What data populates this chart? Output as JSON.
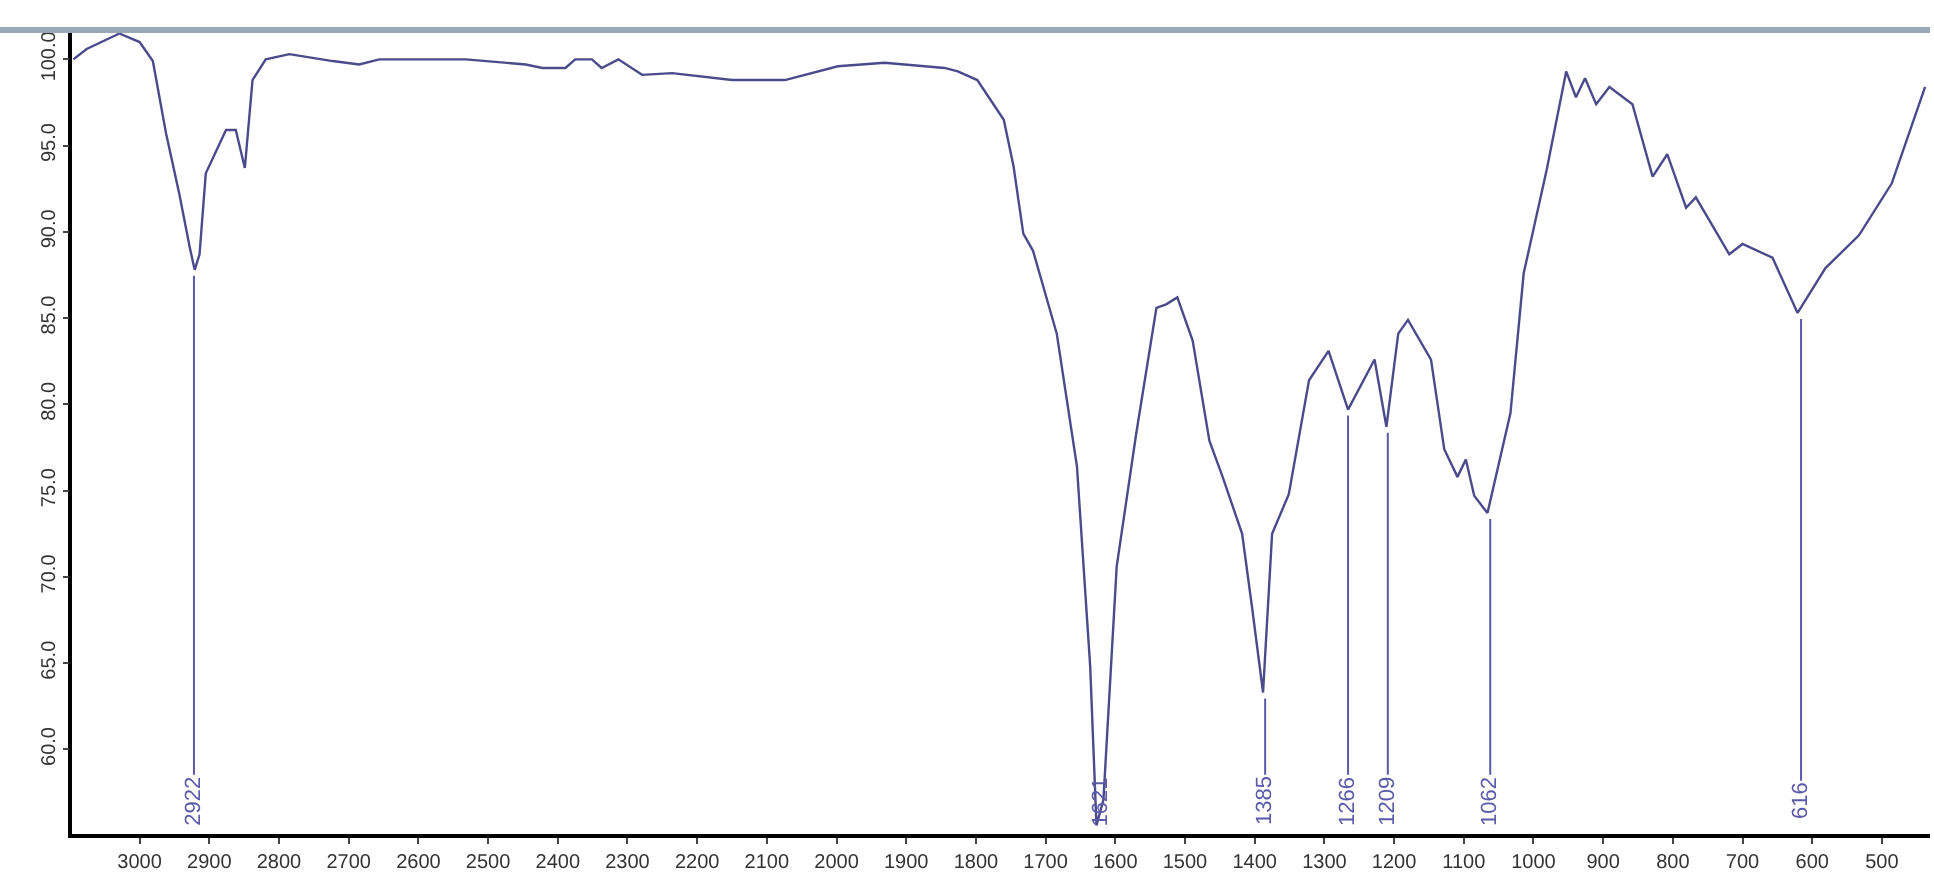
{
  "chart_data": {
    "type": "line",
    "xlim": [
      3097,
      431
    ],
    "ylim": [
      55.1,
      101.7
    ],
    "xticks": [
      3000,
      2900,
      2800,
      2700,
      2600,
      2500,
      2400,
      2300,
      2200,
      2100,
      2000,
      1900,
      1800,
      1700,
      1600,
      1500,
      1400,
      1300,
      1200,
      1100,
      1000,
      900,
      800,
      700,
      600,
      500
    ],
    "yticks": [
      {
        "value": 60,
        "label": "60.0"
      },
      {
        "value": 65,
        "label": "65.0"
      },
      {
        "value": 70,
        "label": "70.0"
      },
      {
        "value": 75,
        "label": "75.0"
      },
      {
        "value": 80,
        "label": "80.0"
      },
      {
        "value": 85,
        "label": "85.0"
      },
      {
        "value": 90,
        "label": "90.0"
      },
      {
        "value": 95,
        "label": "95.0"
      },
      {
        "value": 100,
        "label": "100.0"
      }
    ],
    "grid": false,
    "legend": false,
    "marker": "none",
    "line_style": "solid",
    "series": [
      {
        "color": "#4b4b8c",
        "x": [
          3095,
          3076,
          3029,
          3000,
          2981,
          2962,
          2943,
          2928,
          2921,
          2914,
          2905,
          2876,
          2862,
          2849,
          2838,
          2819,
          2785,
          2723,
          2685,
          2656,
          2532,
          2446,
          2422,
          2389,
          2375,
          2351,
          2337,
          2313,
          2279,
          2236,
          2150,
          2074,
          1998,
          1931,
          1845,
          1826,
          1798,
          1760,
          1746,
          1732,
          1718,
          1684,
          1655,
          1636,
          1627,
          1617,
          1598,
          1570,
          1541,
          1527,
          1511,
          1489,
          1465,
          1446,
          1418,
          1404,
          1388,
          1375,
          1351,
          1322,
          1294,
          1266,
          1228,
          1211,
          1194,
          1180,
          1147,
          1128,
          1109,
          1097,
          1085,
          1066,
          1033,
          1014,
          981,
          953,
          939,
          926,
          910,
          891,
          858,
          829,
          808,
          781,
          767,
          719,
          700,
          657,
          621,
          581,
          533,
          486,
          438
        ],
        "values": [
          100.0,
          100.6,
          101.5,
          101.0,
          99.9,
          95.7,
          92.2,
          89.1,
          87.8,
          88.7,
          93.4,
          95.9,
          95.9,
          93.7,
          98.8,
          100.0,
          100.3,
          99.9,
          99.7,
          100.0,
          100.0,
          99.7,
          99.5,
          99.5,
          100.0,
          100.0,
          99.5,
          100.0,
          99.1,
          99.2,
          98.8,
          98.8,
          99.6,
          99.8,
          99.5,
          99.3,
          98.8,
          96.5,
          93.8,
          89.9,
          88.9,
          84.1,
          76.4,
          64.8,
          55.6,
          57.1,
          70.6,
          78.3,
          85.6,
          85.8,
          86.2,
          83.7,
          77.9,
          75.8,
          72.5,
          68.3,
          63.3,
          72.5,
          74.8,
          81.4,
          83.1,
          79.7,
          82.6,
          78.7,
          84.1,
          84.9,
          82.6,
          77.4,
          75.8,
          76.8,
          74.7,
          73.7,
          79.5,
          87.6,
          93.6,
          99.3,
          97.8,
          98.9,
          97.4,
          98.4,
          97.4,
          93.2,
          94.5,
          91.4,
          92.0,
          88.7,
          89.3,
          88.5,
          85.3,
          87.9,
          89.8,
          92.8,
          98.4
        ]
      }
    ],
    "annotations": [
      {
        "text": "2922",
        "x": 2922,
        "y": 87.8
      },
      {
        "text": "1621",
        "x": 1621,
        "y": 55.6
      },
      {
        "text": "1385",
        "x": 1385,
        "y": 63.3
      },
      {
        "text": "1266",
        "x": 1266,
        "y": 79.7
      },
      {
        "text": "1209",
        "x": 1209,
        "y": 78.7
      },
      {
        "text": "1062",
        "x": 1062,
        "y": 73.7
      },
      {
        "text": "616",
        "x": 616,
        "y": 85.3
      }
    ]
  }
}
